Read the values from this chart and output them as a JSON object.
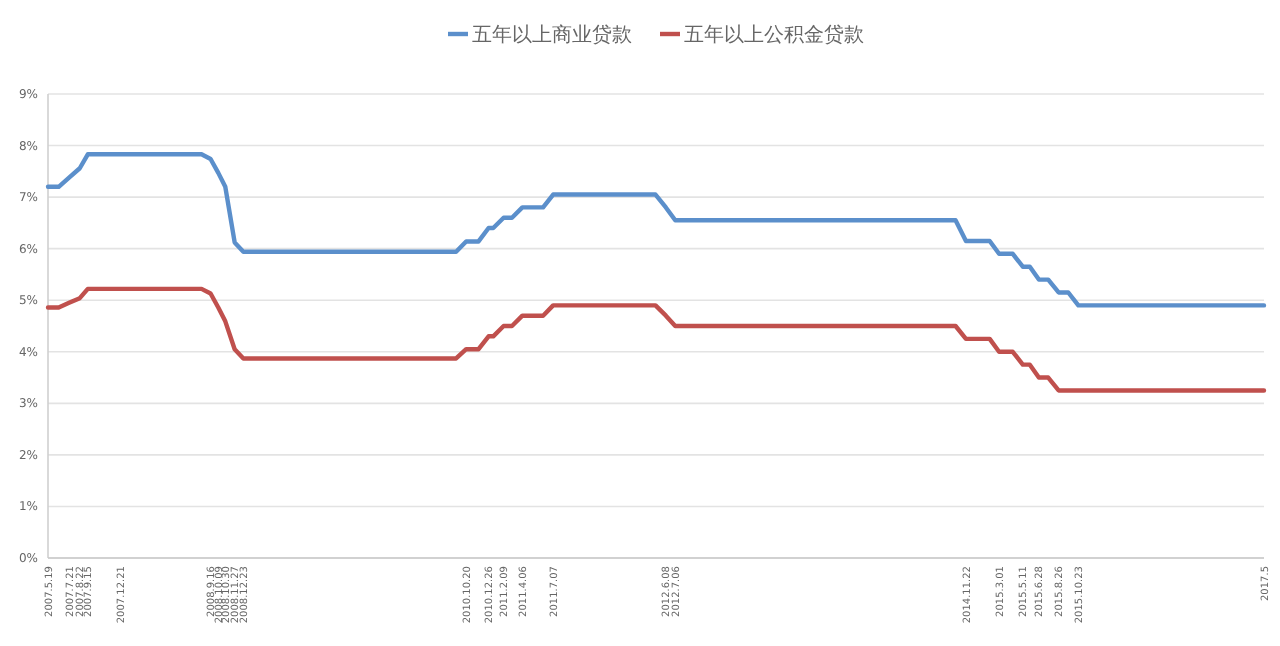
{
  "chart_data": {
    "type": "line",
    "x": [
      "2007-05-19",
      "2007-06-20",
      "2007-07-21",
      "2007-08-22",
      "2007-09-15",
      "2007-12-21",
      "2008-08-20",
      "2008-09-16",
      "2008-10-09",
      "2008-10-30",
      "2008-11-27",
      "2008-12-23",
      "2010-09-20",
      "2010-10-20",
      "2010-11-26",
      "2010-12-26",
      "2011-01-09",
      "2011-02-09",
      "2011-03-06",
      "2011-04-06",
      "2011-06-07",
      "2011-07-07",
      "2012-05-08",
      "2012-06-08",
      "2012-07-06",
      "2014-10-22",
      "2014-11-22",
      "2015-02-01",
      "2015-03-01",
      "2015-04-11",
      "2015-05-11",
      "2015-06-01",
      "2015-06-28",
      "2015-07-26",
      "2015-08-26",
      "2015-09-24",
      "2015-10-24",
      "2017-05-01"
    ],
    "series": [
      {
        "name": "五年以上商业贷款",
        "color": "#5b8fcb",
        "values": [
          7.2,
          7.2,
          7.38,
          7.56,
          7.83,
          7.83,
          7.83,
          7.74,
          7.47,
          7.2,
          6.12,
          5.94,
          5.94,
          6.14,
          6.14,
          6.4,
          6.4,
          6.6,
          6.6,
          6.8,
          6.8,
          7.05,
          7.05,
          6.8,
          6.55,
          6.55,
          6.15,
          6.15,
          5.9,
          5.9,
          5.65,
          5.65,
          5.4,
          5.4,
          5.15,
          5.15,
          4.9,
          4.9
        ]
      },
      {
        "name": "五年以上公积金贷款",
        "color": "#c0504d",
        "values": [
          4.86,
          4.86,
          4.95,
          5.04,
          5.22,
          5.22,
          5.22,
          5.13,
          4.86,
          4.59,
          4.05,
          3.87,
          3.87,
          4.05,
          4.05,
          4.3,
          4.3,
          4.5,
          4.5,
          4.7,
          4.7,
          4.9,
          4.9,
          4.7,
          4.5,
          4.5,
          4.25,
          4.25,
          4.0,
          4.0,
          3.75,
          3.75,
          3.5,
          3.5,
          3.25,
          3.25,
          3.25,
          3.25
        ]
      }
    ],
    "xlim": [
      "2007-05-19",
      "2017-05-01"
    ],
    "xticks": [
      {
        "value": "2007-05-19",
        "label": "2007.5.19"
      },
      {
        "value": "2007-07-21",
        "label": "2007.7.21"
      },
      {
        "value": "2007-08-22",
        "label": "2007.8.22"
      },
      {
        "value": "2007-09-15",
        "label": "2007.9.15"
      },
      {
        "value": "2007-12-21",
        "label": "2007.12.21"
      },
      {
        "value": "2008-09-16",
        "label": "2008.9.16"
      },
      {
        "value": "2008-10-09",
        "label": "2008.10.09"
      },
      {
        "value": "2008-10-30",
        "label": "2008.10.30"
      },
      {
        "value": "2008-11-27",
        "label": "2008.11.27"
      },
      {
        "value": "2008-12-23",
        "label": "2008.12.23"
      },
      {
        "value": "2010-10-20",
        "label": "2010.10.20"
      },
      {
        "value": "2010-12-26",
        "label": "2010.12.26"
      },
      {
        "value": "2011-02-09",
        "label": "2011.2.09"
      },
      {
        "value": "2011-04-06",
        "label": "2011.4.06"
      },
      {
        "value": "2011-07-07",
        "label": "2011.7.07"
      },
      {
        "value": "2012-06-08",
        "label": "2012.6.08"
      },
      {
        "value": "2012-07-06",
        "label": "2012.7.06"
      },
      {
        "value": "2014-11-22",
        "label": "2014.11.22"
      },
      {
        "value": "2015-03-01",
        "label": "2015.3.01"
      },
      {
        "value": "2015-05-11",
        "label": "2015.5.11"
      },
      {
        "value": "2015-06-28",
        "label": "2015.6.28"
      },
      {
        "value": "2015-08-26",
        "label": "2015.8.26"
      },
      {
        "value": "2015-10-23",
        "label": "2015.10.23"
      },
      {
        "value": "2017-05-01",
        "label": "2017.5"
      }
    ],
    "ylim": [
      0,
      9
    ],
    "yticks": [
      {
        "value": 0,
        "label": "0%"
      },
      {
        "value": 1,
        "label": "1%"
      },
      {
        "value": 2,
        "label": "2%"
      },
      {
        "value": 3,
        "label": "3%"
      },
      {
        "value": 4,
        "label": "4%"
      },
      {
        "value": 5,
        "label": "5%"
      },
      {
        "value": 6,
        "label": "6%"
      },
      {
        "value": 7,
        "label": "7%"
      },
      {
        "value": 8,
        "label": "8%"
      },
      {
        "value": 9,
        "label": "9%"
      }
    ],
    "grid": "y",
    "legend": "top"
  }
}
